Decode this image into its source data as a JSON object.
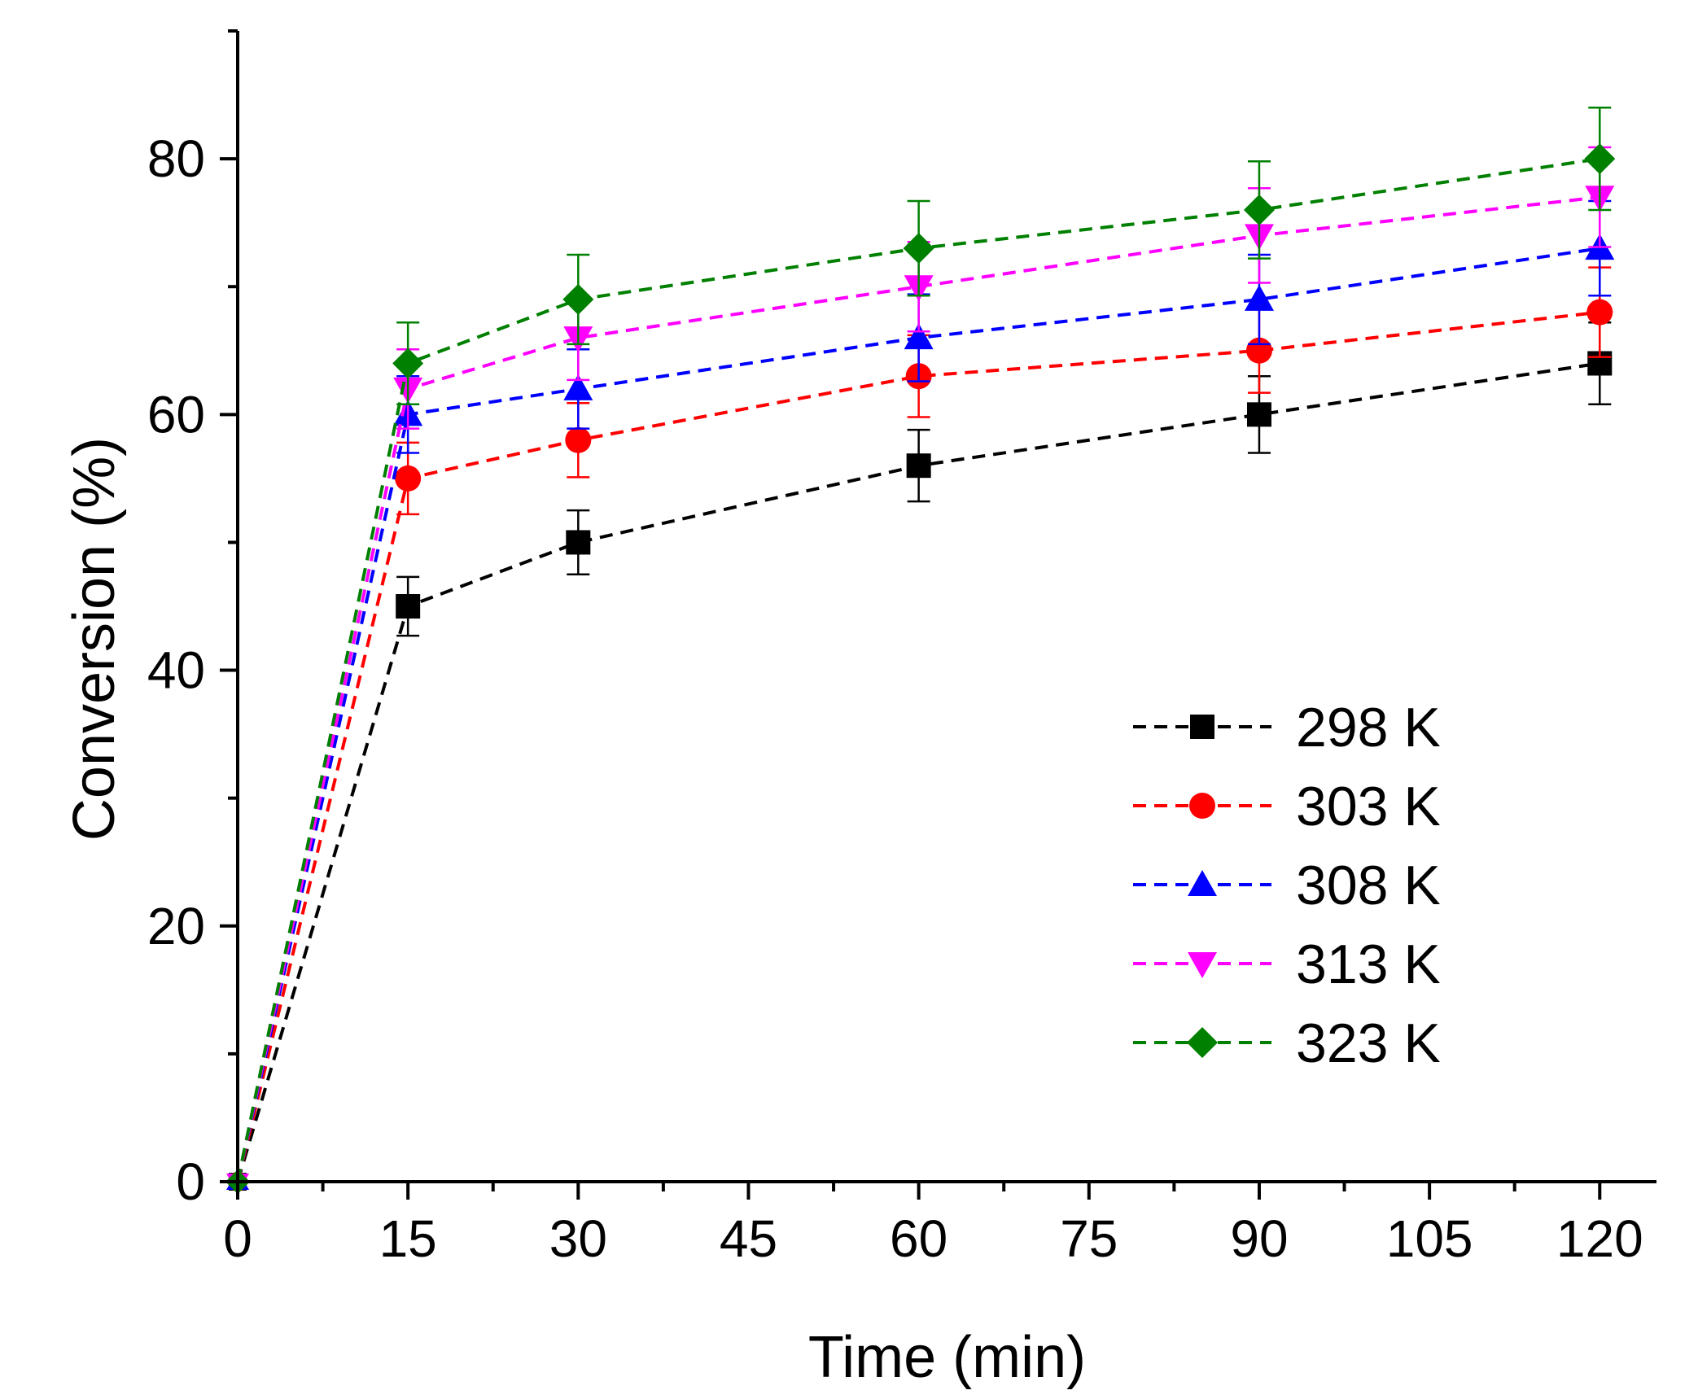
{
  "chart_data": {
    "type": "line",
    "title": "",
    "xlabel": "Time (min)",
    "ylabel": "Conversion (%)",
    "xlim": [
      0,
      125
    ],
    "ylim": [
      0,
      90
    ],
    "xticks": [
      0,
      15,
      30,
      45,
      60,
      75,
      90,
      105,
      120
    ],
    "xtick_labels": [
      "0",
      "15",
      "30",
      "45",
      "60",
      "75",
      "90",
      "105",
      "120"
    ],
    "yticks": [
      0,
      20,
      40,
      60,
      80
    ],
    "ytick_labels": [
      "0",
      "20",
      "40",
      "60",
      "80"
    ],
    "x_minor_step": 7.5,
    "y_minor_step": 10,
    "grid": false,
    "legend_position": "right-center",
    "x": [
      0,
      15,
      30,
      60,
      90,
      120
    ],
    "series": [
      {
        "name": "298 K",
        "color": "#000000",
        "marker": "square",
        "values": [
          0,
          45,
          50,
          56,
          60,
          64
        ],
        "errors": [
          0,
          2.3,
          2.5,
          2.8,
          3.0,
          3.2
        ]
      },
      {
        "name": "303 K",
        "color": "#ff0000",
        "marker": "circle",
        "values": [
          0,
          55,
          58,
          63,
          65,
          68
        ],
        "errors": [
          0,
          2.8,
          2.9,
          3.2,
          3.3,
          3.5
        ]
      },
      {
        "name": "308 K",
        "color": "#0000ff",
        "marker": "triangle-up",
        "values": [
          0,
          60,
          62,
          66,
          69,
          73
        ],
        "errors": [
          0,
          3.0,
          3.1,
          3.4,
          3.5,
          3.7
        ]
      },
      {
        "name": "313 K",
        "color": "#ff00ff",
        "marker": "triangle-down",
        "values": [
          0,
          62,
          66,
          70,
          74,
          77
        ],
        "errors": [
          0,
          3.1,
          3.3,
          3.5,
          3.7,
          3.9
        ]
      },
      {
        "name": "323 K",
        "color": "#008000",
        "marker": "diamond",
        "values": [
          0,
          64,
          69,
          73,
          76,
          80
        ],
        "errors": [
          0,
          3.2,
          3.5,
          3.7,
          3.8,
          4.0
        ]
      }
    ]
  }
}
